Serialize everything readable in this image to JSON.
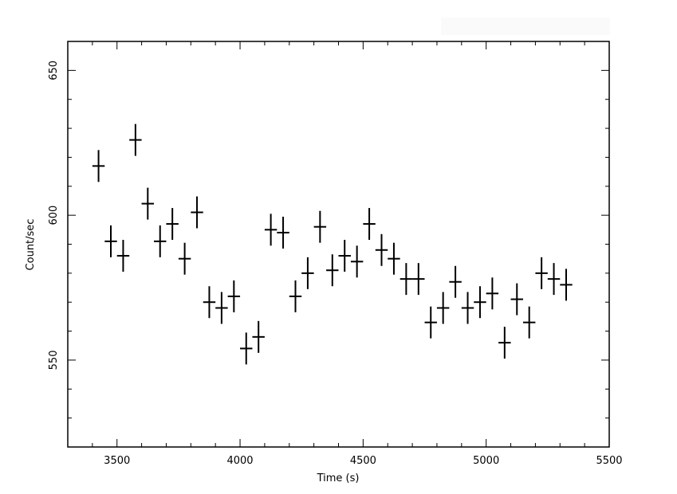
{
  "chart_data": {
    "type": "scatter",
    "title": "",
    "xlabel": "Time (s)",
    "ylabel": "Count/sec",
    "xlim": [
      3300,
      5500
    ],
    "ylim": [
      520,
      660
    ],
    "xticks": [
      3500,
      4000,
      4500,
      5000,
      5500
    ],
    "yticks": [
      550,
      600,
      650
    ],
    "xtick_labels": [
      "3500",
      "4000",
      "4500",
      "5000",
      "5500"
    ],
    "ytick_labels": [
      "550",
      "600",
      "650"
    ],
    "x_error": 25,
    "grid": false,
    "legend": "none",
    "series": [
      {
        "color": "#000000",
        "points": [
          {
            "x": 3425,
            "y": 617,
            "yerr": 5.5
          },
          {
            "x": 3475,
            "y": 591,
            "yerr": 5.5
          },
          {
            "x": 3525,
            "y": 586,
            "yerr": 5.5
          },
          {
            "x": 3575,
            "y": 626,
            "yerr": 5.5
          },
          {
            "x": 3625,
            "y": 604,
            "yerr": 5.5
          },
          {
            "x": 3675,
            "y": 591,
            "yerr": 5.5
          },
          {
            "x": 3725,
            "y": 597,
            "yerr": 5.5
          },
          {
            "x": 3775,
            "y": 585,
            "yerr": 5.5
          },
          {
            "x": 3825,
            "y": 601,
            "yerr": 5.5
          },
          {
            "x": 3875,
            "y": 570,
            "yerr": 5.5
          },
          {
            "x": 3925,
            "y": 568,
            "yerr": 5.5
          },
          {
            "x": 3975,
            "y": 572,
            "yerr": 5.5
          },
          {
            "x": 4025,
            "y": 554,
            "yerr": 5.5
          },
          {
            "x": 4075,
            "y": 558,
            "yerr": 5.5
          },
          {
            "x": 4125,
            "y": 595,
            "yerr": 5.5
          },
          {
            "x": 4175,
            "y": 594,
            "yerr": 5.5
          },
          {
            "x": 4225,
            "y": 572,
            "yerr": 5.5
          },
          {
            "x": 4275,
            "y": 580,
            "yerr": 5.5
          },
          {
            "x": 4325,
            "y": 596,
            "yerr": 5.5
          },
          {
            "x": 4375,
            "y": 581,
            "yerr": 5.5
          },
          {
            "x": 4425,
            "y": 586,
            "yerr": 5.5
          },
          {
            "x": 4475,
            "y": 584,
            "yerr": 5.5
          },
          {
            "x": 4525,
            "y": 597,
            "yerr": 5.5
          },
          {
            "x": 4575,
            "y": 588,
            "yerr": 5.5
          },
          {
            "x": 4625,
            "y": 585,
            "yerr": 5.5
          },
          {
            "x": 4675,
            "y": 578,
            "yerr": 5.5
          },
          {
            "x": 4725,
            "y": 578,
            "yerr": 5.5
          },
          {
            "x": 4775,
            "y": 563,
            "yerr": 5.5
          },
          {
            "x": 4825,
            "y": 568,
            "yerr": 5.5
          },
          {
            "x": 4875,
            "y": 577,
            "yerr": 5.5
          },
          {
            "x": 4925,
            "y": 568,
            "yerr": 5.5
          },
          {
            "x": 4975,
            "y": 570,
            "yerr": 5.5
          },
          {
            "x": 5025,
            "y": 573,
            "yerr": 5.5
          },
          {
            "x": 5075,
            "y": 556,
            "yerr": 5.5
          },
          {
            "x": 5125,
            "y": 571,
            "yerr": 5.5
          },
          {
            "x": 5175,
            "y": 563,
            "yerr": 5.5
          },
          {
            "x": 5225,
            "y": 580,
            "yerr": 5.5
          },
          {
            "x": 5275,
            "y": 578,
            "yerr": 5.5
          },
          {
            "x": 5325,
            "y": 576,
            "yerr": 5.5
          }
        ]
      }
    ]
  }
}
